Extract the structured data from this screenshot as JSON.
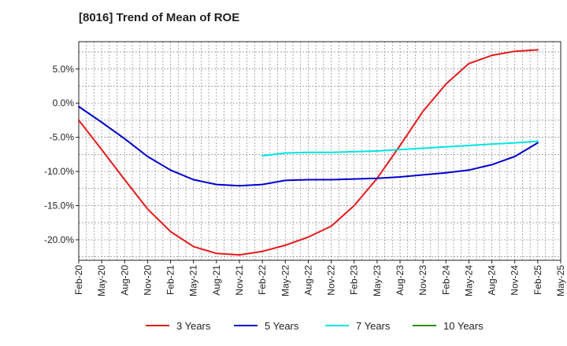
{
  "chart_data": {
    "type": "line",
    "title": "[8016]  Trend of Mean of ROE",
    "xlabel": "",
    "ylabel": "",
    "ylim": [
      -23,
      9
    ],
    "grid": true,
    "legend_position": "bottom",
    "x_ticks": [
      "Feb-20",
      "May-20",
      "Aug-20",
      "Nov-20",
      "Feb-21",
      "May-21",
      "Aug-21",
      "Nov-21",
      "Feb-22",
      "May-22",
      "Aug-22",
      "Nov-22",
      "Feb-23",
      "May-23",
      "Aug-23",
      "Nov-23",
      "Feb-24",
      "May-24",
      "Aug-24",
      "Nov-24",
      "Feb-25",
      "May-25"
    ],
    "y_ticks": [
      5,
      0,
      -5,
      -10,
      -15,
      -20
    ],
    "y_tick_labels": [
      "5.0%",
      "0.0%",
      "-5.0%",
      "-10.0%",
      "-15.0%",
      "-20.0%"
    ],
    "x_start": "2020-02",
    "series": [
      {
        "name": "3 Years",
        "color": "#e41a1c",
        "points": [
          [
            "2020-02",
            -2.5
          ],
          [
            "2020-05",
            -6.8
          ],
          [
            "2020-08",
            -11.2
          ],
          [
            "2020-11",
            -15.5
          ],
          [
            "2021-02",
            -18.8
          ],
          [
            "2021-05",
            -21.0
          ],
          [
            "2021-08",
            -22.0
          ],
          [
            "2021-11",
            -22.2
          ],
          [
            "2022-02",
            -21.7
          ],
          [
            "2022-05",
            -20.8
          ],
          [
            "2022-08",
            -19.6
          ],
          [
            "2022-11",
            -18.0
          ],
          [
            "2023-02",
            -15.0
          ],
          [
            "2023-05",
            -11.0
          ],
          [
            "2023-08",
            -6.2
          ],
          [
            "2023-11",
            -1.2
          ],
          [
            "2024-02",
            2.8
          ],
          [
            "2024-05",
            5.8
          ],
          [
            "2024-08",
            7.0
          ],
          [
            "2024-11",
            7.6
          ],
          [
            "2025-02",
            7.8
          ]
        ]
      },
      {
        "name": "5 Years",
        "color": "#0000cc",
        "points": [
          [
            "2020-02",
            -0.5
          ],
          [
            "2020-05",
            -2.8
          ],
          [
            "2020-08",
            -5.2
          ],
          [
            "2020-11",
            -7.8
          ],
          [
            "2021-02",
            -9.8
          ],
          [
            "2021-05",
            -11.2
          ],
          [
            "2021-08",
            -11.9
          ],
          [
            "2021-11",
            -12.1
          ],
          [
            "2022-02",
            -11.9
          ],
          [
            "2022-05",
            -11.3
          ],
          [
            "2022-08",
            -11.2
          ],
          [
            "2022-11",
            -11.2
          ],
          [
            "2023-02",
            -11.1
          ],
          [
            "2023-05",
            -11.0
          ],
          [
            "2023-08",
            -10.8
          ],
          [
            "2023-11",
            -10.5
          ],
          [
            "2024-02",
            -10.2
          ],
          [
            "2024-05",
            -9.8
          ],
          [
            "2024-08",
            -9.0
          ],
          [
            "2024-11",
            -7.8
          ],
          [
            "2025-02",
            -5.8
          ]
        ]
      },
      {
        "name": "7 Years",
        "color": "#00e5e5",
        "points": [
          [
            "2022-02",
            -7.7
          ],
          [
            "2022-05",
            -7.3
          ],
          [
            "2022-08",
            -7.2
          ],
          [
            "2022-11",
            -7.2
          ],
          [
            "2023-02",
            -7.1
          ],
          [
            "2023-05",
            -7.0
          ],
          [
            "2023-08",
            -6.8
          ],
          [
            "2023-11",
            -6.6
          ],
          [
            "2024-02",
            -6.4
          ],
          [
            "2024-05",
            -6.2
          ],
          [
            "2024-08",
            -6.0
          ],
          [
            "2024-11",
            -5.8
          ],
          [
            "2025-02",
            -5.6
          ]
        ]
      },
      {
        "name": "10 Years",
        "color": "#228b22",
        "points": []
      }
    ]
  }
}
